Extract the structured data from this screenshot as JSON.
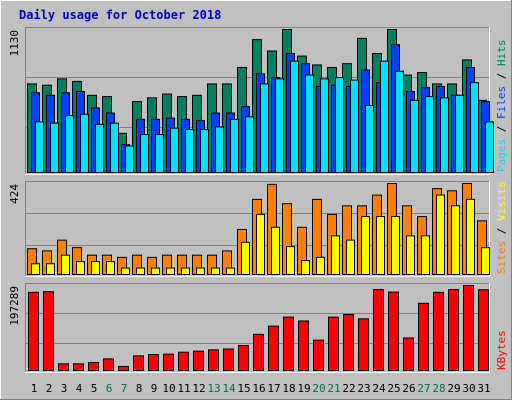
{
  "colors": {
    "frame": "#c0c0c0",
    "panel": "#c0c0c0",
    "title": "#0000c0",
    "hits": "#00805c",
    "files": "#0040ff",
    "pages": "#00e0ff",
    "visits": "#ff8000",
    "sites": "#ffff00",
    "kbytes": "#ff0000",
    "weekend_day": "#007050",
    "weekday_day": "#000000",
    "axis_text": "#000000",
    "gridline": "#808080"
  },
  "chart_data": [
    {
      "type": "bar",
      "title": "Daily usage for October 2018",
      "ylabel_parts": [
        "Pages",
        "Files",
        "Hits"
      ],
      "ylabel_separator": " / ",
      "ymax_label": "1130",
      "ylim": [
        0,
        1130
      ],
      "categories": [
        "1",
        "2",
        "3",
        "4",
        "5",
        "6",
        "7",
        "8",
        "9",
        "10",
        "11",
        "12",
        "13",
        "14",
        "15",
        "16",
        "17",
        "18",
        "19",
        "20",
        "21",
        "22",
        "23",
        "24",
        "25",
        "26",
        "27",
        "28",
        "29",
        "30",
        "31"
      ],
      "weekend_days": [
        "6",
        "7",
        "13",
        "14",
        "20",
        "21",
        "27",
        "28"
      ],
      "series": [
        {
          "name": "Hits",
          "values": [
            700,
            690,
            740,
            720,
            610,
            600,
            310,
            560,
            590,
            620,
            600,
            610,
            700,
            700,
            830,
            1050,
            960,
            1130,
            920,
            850,
            830,
            860,
            1060,
            940,
            1130,
            770,
            790,
            700,
            700,
            890,
            570
          ]
        },
        {
          "name": "Files",
          "values": [
            630,
            610,
            630,
            640,
            510,
            470,
            220,
            420,
            420,
            430,
            420,
            410,
            470,
            470,
            520,
            780,
            750,
            940,
            860,
            680,
            690,
            680,
            810,
            710,
            1010,
            640,
            670,
            680,
            610,
            830,
            560
          ]
        },
        {
          "name": "Pages",
          "values": [
            400,
            390,
            450,
            460,
            380,
            390,
            210,
            300,
            300,
            350,
            340,
            340,
            360,
            420,
            440,
            700,
            740,
            880,
            770,
            740,
            750,
            730,
            530,
            880,
            800,
            570,
            600,
            590,
            610,
            710,
            400
          ]
        }
      ]
    },
    {
      "type": "bar",
      "ylabel_parts": [
        "Sites",
        "Visits"
      ],
      "ylabel_separator": " / ",
      "ymax_label": "424",
      "ylim": [
        0,
        424
      ],
      "categories": [
        "1",
        "2",
        "3",
        "4",
        "5",
        "6",
        "7",
        "8",
        "9",
        "10",
        "11",
        "12",
        "13",
        "14",
        "15",
        "16",
        "17",
        "18",
        "19",
        "20",
        "21",
        "22",
        "23",
        "24",
        "25",
        "26",
        "27",
        "28",
        "29",
        "30",
        "31"
      ],
      "series": [
        {
          "name": "Visits",
          "values": [
            120,
            110,
            160,
            125,
            90,
            90,
            80,
            90,
            80,
            90,
            90,
            90,
            90,
            110,
            210,
            350,
            420,
            330,
            220,
            350,
            280,
            320,
            320,
            370,
            430,
            320,
            270,
            400,
            390,
            430,
            250
          ]
        },
        {
          "name": "Sites",
          "values": [
            50,
            50,
            90,
            60,
            60,
            60,
            30,
            30,
            30,
            30,
            30,
            30,
            30,
            30,
            150,
            280,
            220,
            130,
            65,
            80,
            180,
            160,
            270,
            270,
            270,
            180,
            180,
            370,
            320,
            350,
            125
          ]
        }
      ]
    },
    {
      "type": "bar",
      "ylabel_parts": [
        "KBytes"
      ],
      "ymax_label": "197289",
      "ylim": [
        0,
        197289
      ],
      "categories": [
        "1",
        "2",
        "3",
        "4",
        "5",
        "6",
        "7",
        "8",
        "9",
        "10",
        "11",
        "12",
        "13",
        "14",
        "15",
        "16",
        "17",
        "18",
        "19",
        "20",
        "21",
        "22",
        "23",
        "24",
        "25",
        "26",
        "27",
        "28",
        "29",
        "30",
        "31"
      ],
      "series": [
        {
          "name": "KBytes",
          "values": [
            181500,
            183000,
            15500,
            15500,
            18500,
            27000,
            9500,
            34000,
            37000,
            38000,
            42500,
            45000,
            48000,
            50000,
            58000,
            84000,
            103000,
            124000,
            115000,
            70500,
            124000,
            130000,
            120000,
            188000,
            182000,
            75500,
            156000,
            181500,
            188000,
            203000,
            187500
          ]
        }
      ]
    }
  ]
}
